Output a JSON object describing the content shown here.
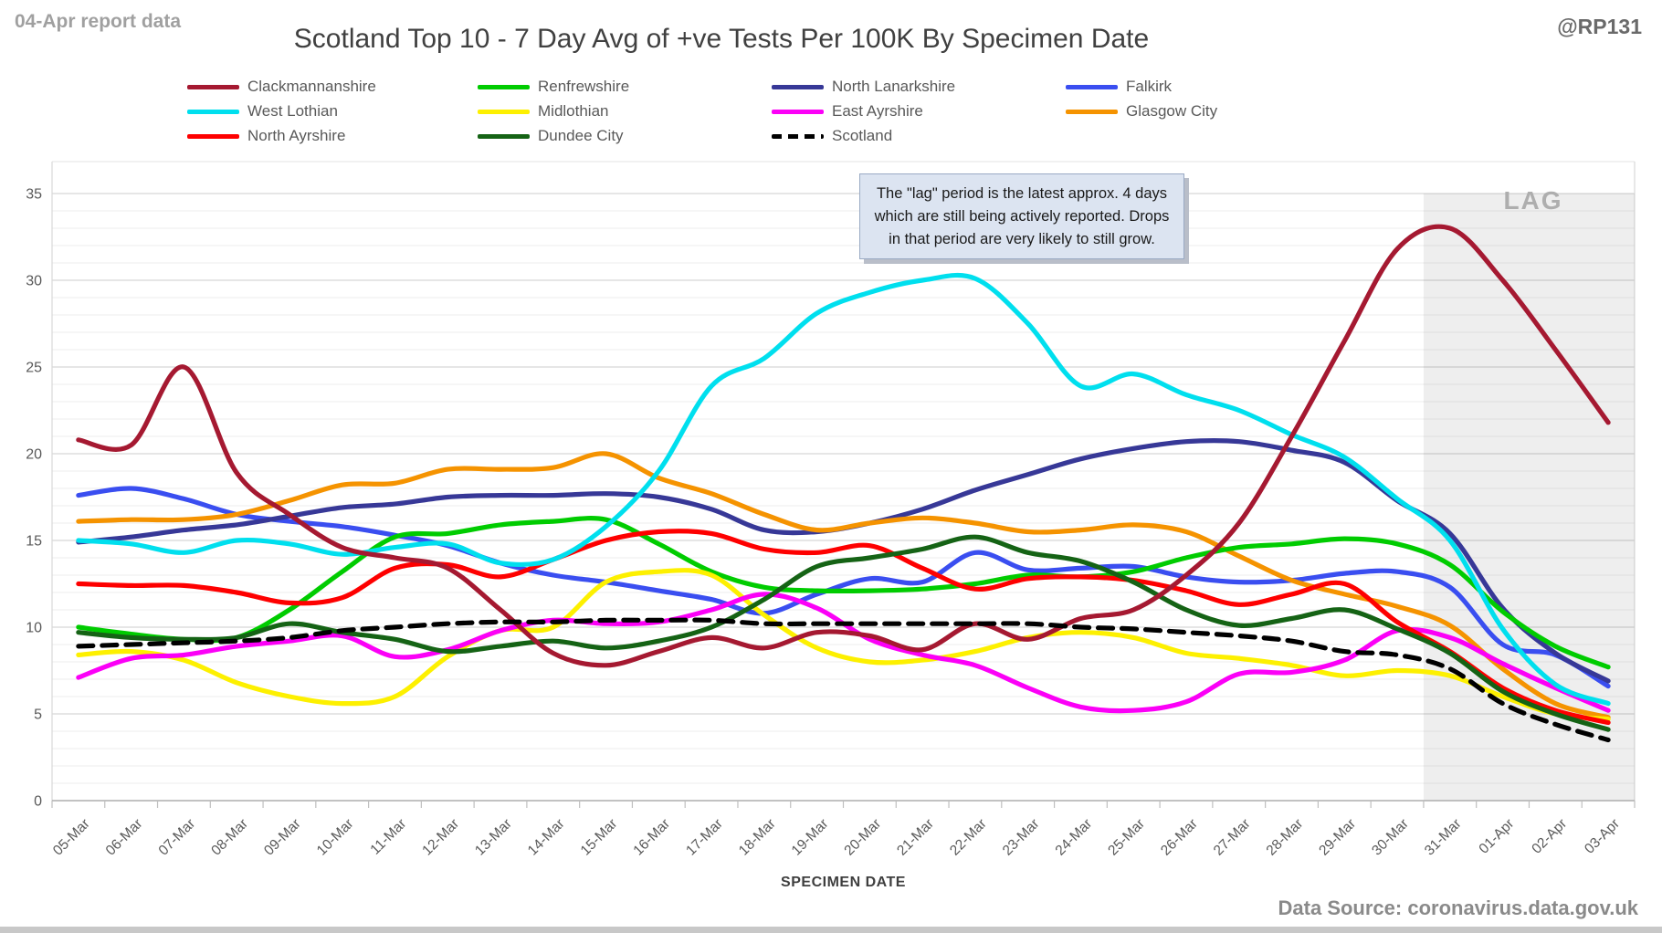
{
  "header": {
    "report_label": "04-Apr report data",
    "title": "Scotland Top 10 - 7 Day Avg of +ve Tests Per 100K By Specimen Date",
    "handle": "@RP131"
  },
  "annotation": {
    "text": "The \"lag\" period is the latest approx. 4 days which are still being actively reported. Drops in that period are very likely to still grow."
  },
  "footer": {
    "xaxis_title": "SPECIMEN DATE",
    "source": "Data Source: coronavirus.data.gov.uk"
  },
  "chart_data": {
    "type": "line",
    "title": "Scotland Top 10 - 7 Day Avg of +ve Tests Per 100K By Specimen Date",
    "xlabel": "SPECIMEN DATE",
    "ylabel": "",
    "ylim": [
      0,
      35
    ],
    "ytick_step": 5,
    "grid": "minor-horizontal",
    "legend_position": "top",
    "lag_region": {
      "start_category": "31-Mar",
      "label": "LAG"
    },
    "categories": [
      "05-Mar",
      "06-Mar",
      "07-Mar",
      "08-Mar",
      "09-Mar",
      "10-Mar",
      "11-Mar",
      "12-Mar",
      "13-Mar",
      "14-Mar",
      "15-Mar",
      "16-Mar",
      "17-Mar",
      "18-Mar",
      "19-Mar",
      "20-Mar",
      "21-Mar",
      "22-Mar",
      "23-Mar",
      "24-Mar",
      "25-Mar",
      "26-Mar",
      "27-Mar",
      "28-Mar",
      "29-Mar",
      "30-Mar",
      "31-Mar",
      "01-Apr",
      "02-Apr",
      "03-Apr"
    ],
    "series": [
      {
        "name": "Clackmannanshire",
        "color": "#a51931",
        "dashed": false,
        "values": [
          20.8,
          20.5,
          25.0,
          18.9,
          16.5,
          14.6,
          14.0,
          13.4,
          11.0,
          8.5,
          7.8,
          8.6,
          9.4,
          8.8,
          9.7,
          9.5,
          8.7,
          10.2,
          9.3,
          10.5,
          11.0,
          13.0,
          16.0,
          21.0,
          26.5,
          31.8,
          33.0,
          30.0,
          26.0,
          21.8
        ]
      },
      {
        "name": "Renfrewshire",
        "color": "#00cc00",
        "dashed": false,
        "values": [
          10.0,
          9.6,
          9.3,
          9.4,
          11.0,
          13.2,
          15.2,
          15.4,
          15.9,
          16.1,
          16.2,
          14.8,
          13.2,
          12.3,
          12.1,
          12.1,
          12.2,
          12.5,
          13.0,
          12.9,
          13.2,
          14.0,
          14.6,
          14.8,
          15.1,
          14.8,
          13.6,
          10.9,
          8.9,
          7.7
        ]
      },
      {
        "name": "North Lanarkshire",
        "color": "#373897",
        "dashed": false,
        "values": [
          14.9,
          15.2,
          15.6,
          15.9,
          16.4,
          16.9,
          17.1,
          17.5,
          17.6,
          17.6,
          17.7,
          17.5,
          16.8,
          15.6,
          15.5,
          16.0,
          16.8,
          17.9,
          18.8,
          19.7,
          20.3,
          20.7,
          20.7,
          20.2,
          19.5,
          17.3,
          15.4,
          11.1,
          8.5,
          6.9
        ]
      },
      {
        "name": "Falkirk",
        "color": "#3a4ef0",
        "dashed": false,
        "values": [
          17.6,
          18.0,
          17.4,
          16.5,
          16.1,
          15.8,
          15.3,
          14.7,
          13.7,
          13.0,
          12.6,
          12.1,
          11.6,
          10.8,
          11.9,
          12.8,
          12.6,
          14.3,
          13.3,
          13.4,
          13.5,
          12.9,
          12.6,
          12.7,
          13.1,
          13.2,
          12.3,
          9.0,
          8.4,
          6.6
        ]
      },
      {
        "name": "West Lothian",
        "color": "#00dfee",
        "dashed": false,
        "values": [
          15.0,
          14.8,
          14.3,
          15.0,
          14.8,
          14.2,
          14.6,
          14.8,
          13.7,
          13.9,
          15.8,
          19.0,
          23.9,
          25.5,
          28.1,
          29.3,
          30.0,
          30.1,
          27.5,
          23.9,
          24.6,
          23.4,
          22.5,
          21.1,
          19.8,
          17.4,
          15.0,
          9.9,
          6.7,
          5.6
        ]
      },
      {
        "name": "Midlothian",
        "color": "#fdf000",
        "dashed": false,
        "values": [
          8.4,
          8.6,
          8.1,
          6.8,
          6.0,
          5.6,
          6.0,
          8.3,
          9.8,
          10.0,
          12.6,
          13.2,
          13.0,
          10.7,
          8.8,
          8.0,
          8.1,
          8.6,
          9.4,
          9.7,
          9.4,
          8.5,
          8.2,
          7.8,
          7.2,
          7.5,
          7.2,
          6.0,
          5.0,
          4.7
        ]
      },
      {
        "name": "East Ayrshire",
        "color": "#fb00f7",
        "dashed": false,
        "values": [
          7.1,
          8.2,
          8.4,
          8.9,
          9.2,
          9.5,
          8.3,
          8.7,
          9.8,
          10.4,
          10.2,
          10.3,
          11.0,
          11.9,
          11.1,
          9.3,
          8.4,
          7.8,
          6.5,
          5.4,
          5.2,
          5.7,
          7.3,
          7.4,
          8.1,
          9.8,
          9.4,
          7.9,
          6.5,
          5.2
        ]
      },
      {
        "name": "Glasgow City",
        "color": "#f59300",
        "dashed": false,
        "values": [
          16.1,
          16.2,
          16.2,
          16.5,
          17.3,
          18.2,
          18.3,
          19.1,
          19.1,
          19.2,
          20.0,
          18.6,
          17.7,
          16.5,
          15.6,
          16.0,
          16.3,
          16.0,
          15.5,
          15.6,
          15.9,
          15.5,
          14.1,
          12.7,
          11.9,
          11.2,
          10.1,
          7.6,
          5.6,
          4.8
        ]
      },
      {
        "name": "North Ayrshire",
        "color": "#fe0000",
        "dashed": false,
        "values": [
          12.5,
          12.4,
          12.4,
          12.0,
          11.4,
          11.7,
          13.4,
          13.6,
          12.9,
          13.9,
          15.0,
          15.5,
          15.4,
          14.5,
          14.3,
          14.7,
          13.4,
          12.2,
          12.8,
          12.9,
          12.7,
          12.1,
          11.3,
          11.9,
          12.5,
          10.3,
          8.6,
          6.5,
          5.2,
          4.5
        ]
      },
      {
        "name": "Dundee City",
        "color": "#156315",
        "dashed": false,
        "values": [
          9.7,
          9.4,
          9.3,
          9.4,
          10.2,
          9.7,
          9.3,
          8.6,
          8.9,
          9.2,
          8.8,
          9.2,
          10.0,
          11.6,
          13.5,
          14.0,
          14.5,
          15.2,
          14.3,
          13.8,
          12.6,
          11.0,
          10.1,
          10.5,
          11.0,
          9.9,
          8.5,
          6.3,
          5.0,
          4.1
        ]
      },
      {
        "name": "Scotland",
        "color": "#000000",
        "dashed": true,
        "values": [
          8.9,
          9.0,
          9.1,
          9.2,
          9.4,
          9.8,
          10.0,
          10.2,
          10.3,
          10.3,
          10.4,
          10.4,
          10.4,
          10.2,
          10.2,
          10.2,
          10.2,
          10.2,
          10.2,
          10.0,
          9.9,
          9.7,
          9.5,
          9.2,
          8.6,
          8.4,
          7.6,
          5.6,
          4.4,
          3.5
        ]
      }
    ],
    "draw_order": [
      "Falkirk",
      "North Lanarkshire",
      "Glasgow City",
      "Renfrewshire",
      "Midlothian",
      "East Ayrshire",
      "North Ayrshire",
      "Dundee City",
      "West Lothian",
      "Clackmannanshire",
      "Scotland"
    ],
    "legend_columns": [
      [
        "Clackmannanshire",
        "West Lothian",
        "North Ayrshire"
      ],
      [
        "Renfrewshire",
        "Midlothian",
        "Dundee City"
      ],
      [
        "North Lanarkshire",
        "East Ayrshire",
        "Scotland"
      ],
      [
        "Falkirk",
        "Glasgow City"
      ]
    ]
  }
}
